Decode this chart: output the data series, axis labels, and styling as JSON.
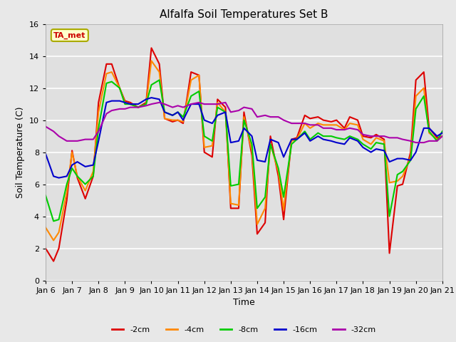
{
  "title": "Alfalfa Soil Temperatures Set B",
  "xlabel": "Time",
  "ylabel": "Soil Temperature (C)",
  "xlim": [
    0,
    15
  ],
  "ylim": [
    0,
    16
  ],
  "yticks": [
    0,
    2,
    4,
    6,
    8,
    10,
    12,
    14,
    16
  ],
  "xtick_labels": [
    "Jan 6",
    "Jan 7",
    "Jan 8",
    "Jan 9",
    "Jan 10",
    "Jan 11",
    "Jan 12",
    "Jan 13",
    "Jan 14",
    "Jan 15",
    "Jan 16",
    "Jan 17",
    "Jan 18",
    "Jan 19",
    "Jan 20",
    "Jan 21"
  ],
  "annotation_text": "TA_met",
  "annotation_color": "#cc0000",
  "annotation_bg": "#ffffcc",
  "annotation_edge": "#aaaa00",
  "fig_bg_color": "#e8e8e8",
  "axes_bg_color": "#e0e0e0",
  "grid_color": "#ffffff",
  "series": [
    {
      "label": "-2cm",
      "color": "#dd0000",
      "lw": 1.5,
      "x": [
        0,
        0.3,
        0.5,
        0.8,
        1.0,
        1.2,
        1.5,
        1.8,
        2.0,
        2.3,
        2.5,
        2.8,
        3.0,
        3.2,
        3.5,
        3.8,
        4.0,
        4.3,
        4.5,
        4.8,
        5.0,
        5.2,
        5.5,
        5.8,
        6.0,
        6.3,
        6.5,
        6.8,
        7.0,
        7.3,
        7.5,
        7.8,
        8.0,
        8.3,
        8.5,
        8.8,
        9.0,
        9.3,
        9.5,
        9.8,
        10.0,
        10.3,
        10.5,
        10.8,
        11.0,
        11.3,
        11.5,
        11.8,
        12.0,
        12.3,
        12.5,
        12.8,
        13.0,
        13.3,
        13.5,
        13.8,
        14.0,
        14.3,
        14.5,
        14.8,
        15.0
      ],
      "y": [
        2.0,
        1.2,
        2.0,
        5.0,
        8.1,
        6.4,
        5.1,
        6.5,
        11.1,
        13.5,
        13.5,
        12.0,
        11.2,
        11.1,
        10.8,
        11.1,
        14.5,
        13.5,
        10.1,
        9.9,
        10.0,
        9.8,
        13.0,
        12.8,
        8.0,
        7.7,
        11.3,
        10.8,
        4.5,
        4.5,
        10.5,
        7.8,
        2.9,
        3.6,
        9.0,
        6.5,
        3.8,
        8.8,
        8.9,
        10.3,
        10.1,
        10.2,
        10.0,
        9.9,
        10.0,
        9.5,
        10.2,
        10.0,
        9.0,
        8.9,
        9.1,
        8.8,
        1.7,
        5.9,
        6.0,
        8.0,
        12.5,
        13.0,
        9.5,
        8.9,
        9.0
      ]
    },
    {
      "label": "-4cm",
      "color": "#ff8800",
      "lw": 1.5,
      "x": [
        0,
        0.3,
        0.5,
        0.8,
        1.0,
        1.2,
        1.5,
        1.8,
        2.0,
        2.3,
        2.5,
        2.8,
        3.0,
        3.2,
        3.5,
        3.8,
        4.0,
        4.3,
        4.5,
        4.8,
        5.0,
        5.2,
        5.5,
        5.8,
        6.0,
        6.3,
        6.5,
        6.8,
        7.0,
        7.3,
        7.5,
        7.8,
        8.0,
        8.3,
        8.5,
        8.8,
        9.0,
        9.3,
        9.5,
        9.8,
        10.0,
        10.3,
        10.5,
        10.8,
        11.0,
        11.3,
        11.5,
        11.8,
        12.0,
        12.3,
        12.5,
        12.8,
        13.0,
        13.3,
        13.5,
        13.8,
        14.0,
        14.3,
        14.5,
        14.8,
        15.0
      ],
      "y": [
        3.3,
        2.5,
        3.0,
        5.5,
        8.0,
        6.5,
        5.6,
        6.8,
        10.5,
        12.9,
        13.0,
        12.0,
        11.1,
        11.0,
        10.8,
        11.0,
        13.7,
        13.0,
        10.1,
        10.0,
        10.0,
        9.9,
        12.5,
        12.8,
        8.3,
        8.4,
        11.1,
        10.5,
        4.8,
        4.7,
        10.2,
        8.1,
        3.5,
        4.5,
        8.5,
        6.8,
        4.4,
        8.7,
        8.8,
        9.8,
        9.5,
        9.8,
        9.7,
        9.7,
        9.7,
        9.4,
        9.8,
        9.7,
        8.8,
        8.5,
        8.9,
        8.7,
        6.1,
        6.2,
        6.5,
        7.7,
        11.5,
        12.0,
        9.2,
        8.8,
        9.0
      ]
    },
    {
      "label": "-8cm",
      "color": "#00cc00",
      "lw": 1.5,
      "x": [
        0,
        0.3,
        0.5,
        0.8,
        1.0,
        1.2,
        1.5,
        1.8,
        2.0,
        2.3,
        2.5,
        2.8,
        3.0,
        3.2,
        3.5,
        3.8,
        4.0,
        4.3,
        4.5,
        4.8,
        5.0,
        5.2,
        5.5,
        5.8,
        6.0,
        6.3,
        6.5,
        6.8,
        7.0,
        7.3,
        7.5,
        7.8,
        8.0,
        8.3,
        8.5,
        8.8,
        9.0,
        9.3,
        9.5,
        9.8,
        10.0,
        10.3,
        10.5,
        10.8,
        11.0,
        11.3,
        11.5,
        11.8,
        12.0,
        12.3,
        12.5,
        12.8,
        13.0,
        13.3,
        13.5,
        13.8,
        14.0,
        14.3,
        14.5,
        14.8,
        15.0
      ],
      "y": [
        5.3,
        3.7,
        3.8,
        6.0,
        7.0,
        6.5,
        6.0,
        6.5,
        9.5,
        12.3,
        12.4,
        12.0,
        11.0,
        11.0,
        10.8,
        11.0,
        12.2,
        12.5,
        10.5,
        10.3,
        10.5,
        10.2,
        11.5,
        11.8,
        9.0,
        8.7,
        10.8,
        10.5,
        5.9,
        6.0,
        10.0,
        8.5,
        4.5,
        5.2,
        8.5,
        7.0,
        5.2,
        8.5,
        8.8,
        9.3,
        8.8,
        9.2,
        9.0,
        9.0,
        8.9,
        8.8,
        9.0,
        8.8,
        8.5,
        8.2,
        8.6,
        8.5,
        4.0,
        6.6,
        6.8,
        7.5,
        10.7,
        11.5,
        9.3,
        8.7,
        9.3
      ]
    },
    {
      "label": "-16cm",
      "color": "#0000cc",
      "lw": 1.5,
      "x": [
        0,
        0.3,
        0.5,
        0.8,
        1.0,
        1.2,
        1.5,
        1.8,
        2.0,
        2.3,
        2.5,
        2.8,
        3.0,
        3.2,
        3.5,
        3.8,
        4.0,
        4.3,
        4.5,
        4.8,
        5.0,
        5.2,
        5.5,
        5.8,
        6.0,
        6.3,
        6.5,
        6.8,
        7.0,
        7.3,
        7.5,
        7.8,
        8.0,
        8.3,
        8.5,
        8.8,
        9.0,
        9.3,
        9.5,
        9.8,
        10.0,
        10.3,
        10.5,
        10.8,
        11.0,
        11.3,
        11.5,
        11.8,
        12.0,
        12.3,
        12.5,
        12.8,
        13.0,
        13.3,
        13.5,
        13.8,
        14.0,
        14.3,
        14.5,
        14.8,
        15.0
      ],
      "y": [
        7.9,
        6.5,
        6.4,
        6.5,
        7.2,
        7.4,
        7.1,
        7.2,
        8.7,
        11.1,
        11.2,
        11.2,
        11.1,
        11.0,
        11.0,
        11.3,
        11.4,
        11.3,
        10.5,
        10.3,
        10.5,
        10.0,
        11.0,
        11.0,
        10.0,
        9.8,
        10.3,
        10.5,
        8.6,
        8.7,
        9.5,
        9.0,
        7.5,
        7.4,
        8.8,
        8.6,
        7.7,
        8.8,
        8.8,
        9.2,
        8.7,
        9.0,
        8.8,
        8.7,
        8.6,
        8.5,
        8.9,
        8.7,
        8.3,
        8.0,
        8.2,
        8.1,
        7.4,
        7.6,
        7.6,
        7.5,
        8.0,
        9.5,
        9.5,
        9.0,
        9.2
      ]
    },
    {
      "label": "-32cm",
      "color": "#aa00aa",
      "lw": 1.5,
      "x": [
        0,
        0.3,
        0.5,
        0.8,
        1.0,
        1.2,
        1.5,
        1.8,
        2.0,
        2.3,
        2.5,
        2.8,
        3.0,
        3.2,
        3.5,
        3.8,
        4.0,
        4.3,
        4.5,
        4.8,
        5.0,
        5.2,
        5.5,
        5.8,
        6.0,
        6.3,
        6.5,
        6.8,
        7.0,
        7.3,
        7.5,
        7.8,
        8.0,
        8.3,
        8.5,
        8.8,
        9.0,
        9.3,
        9.5,
        9.8,
        10.0,
        10.3,
        10.5,
        10.8,
        11.0,
        11.3,
        11.5,
        11.8,
        12.0,
        12.3,
        12.5,
        12.8,
        13.0,
        13.3,
        13.5,
        13.8,
        14.0,
        14.3,
        14.5,
        14.8,
        15.0
      ],
      "y": [
        9.6,
        9.3,
        9.0,
        8.7,
        8.7,
        8.7,
        8.8,
        8.8,
        9.3,
        10.4,
        10.6,
        10.7,
        10.7,
        10.8,
        10.8,
        10.9,
        11.0,
        11.1,
        11.0,
        10.8,
        10.9,
        10.8,
        11.0,
        11.1,
        11.0,
        11.0,
        11.0,
        11.1,
        10.5,
        10.6,
        10.8,
        10.7,
        10.2,
        10.3,
        10.2,
        10.2,
        10.0,
        9.8,
        9.8,
        9.8,
        9.7,
        9.7,
        9.5,
        9.5,
        9.4,
        9.4,
        9.5,
        9.4,
        9.1,
        9.0,
        9.0,
        9.0,
        8.9,
        8.9,
        8.8,
        8.7,
        8.6,
        8.6,
        8.7,
        8.7,
        9.0
      ]
    }
  ]
}
